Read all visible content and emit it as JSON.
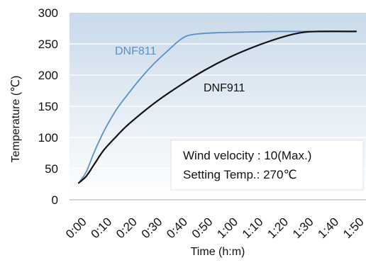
{
  "chart_data": {
    "type": "line",
    "title": "",
    "xlabel": "Time (h:m)",
    "ylabel": "Temperature (℃)",
    "x_ticks": [
      "0:00",
      "0:10",
      "0:20",
      "0:30",
      "0:40",
      "0:50",
      "1:00",
      "1:10",
      "1:20",
      "1:30",
      "1:40",
      "1:50"
    ],
    "x_unit": "minutes",
    "xlim": [
      0,
      110
    ],
    "ylim": [
      0,
      300
    ],
    "y_ticks": [
      0,
      50,
      100,
      150,
      200,
      250,
      300
    ],
    "grid": true,
    "series": [
      {
        "name": "DNF811",
        "color": "#5b8fc8",
        "points": [
          [
            0,
            27
          ],
          [
            3,
            45
          ],
          [
            6,
            75
          ],
          [
            10,
            110
          ],
          [
            15,
            145
          ],
          [
            20,
            172
          ],
          [
            25,
            197
          ],
          [
            30,
            219
          ],
          [
            35,
            238
          ],
          [
            40,
            256
          ],
          [
            43,
            263
          ],
          [
            47,
            266
          ],
          [
            55,
            268
          ],
          [
            65,
            269
          ],
          [
            80,
            270
          ],
          [
            95,
            270
          ],
          [
            110,
            270
          ]
        ]
      },
      {
        "name": "DNF911",
        "color": "#111111",
        "points": [
          [
            0,
            27
          ],
          [
            3,
            38
          ],
          [
            6,
            56
          ],
          [
            10,
            80
          ],
          [
            15,
            102
          ],
          [
            20,
            122
          ],
          [
            30,
            155
          ],
          [
            40,
            183
          ],
          [
            50,
            208
          ],
          [
            60,
            229
          ],
          [
            70,
            246
          ],
          [
            80,
            260
          ],
          [
            88,
            268
          ],
          [
            95,
            270
          ],
          [
            110,
            270
          ]
        ]
      }
    ],
    "annotation": {
      "line1": "Wind velocity : 10(Max.)",
      "line2": "Setting Temp.: 270℃"
    }
  }
}
